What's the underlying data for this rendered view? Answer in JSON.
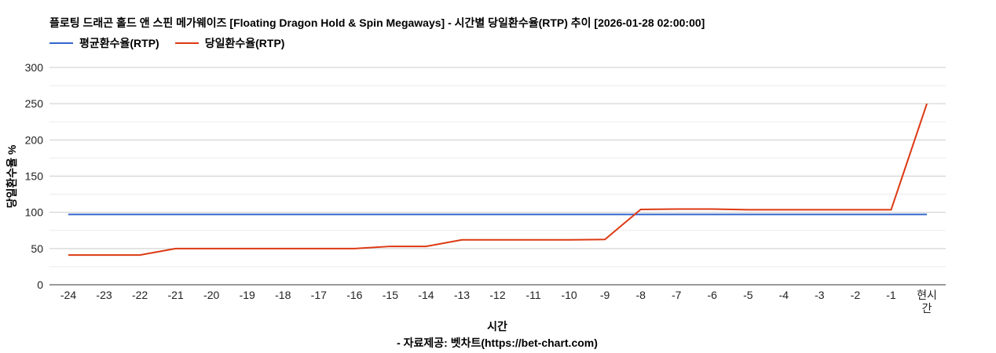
{
  "chart_data": {
    "type": "line",
    "title": "플로팅 드래곤 홀드 앤 스핀 메가웨이즈 [Floating Dragon Hold & Spin Megaways] - 시간별 당일환수율(RTP) 추이 [2026-01-28 02:00:00]",
    "xlabel": "시간",
    "source": "- 자료제공: 벳차트(https://bet-chart.com)",
    "ylabel": "당일환수율 %",
    "ylim": [
      0,
      300
    ],
    "yticks": [
      0,
      50,
      100,
      150,
      200,
      250,
      300
    ],
    "grid": true,
    "legend": "top-left",
    "categories": [
      "-24",
      "-23",
      "-22",
      "-21",
      "-20",
      "-19",
      "-18",
      "-17",
      "-16",
      "-15",
      "-14",
      "-13",
      "-12",
      "-11",
      "-10",
      "-9",
      "-8",
      "-7",
      "-6",
      "-5",
      "-4",
      "-3",
      "-2",
      "-1",
      "현시간"
    ],
    "series": [
      {
        "name": "평균환수율(RTP)",
        "color": "#3366cc",
        "values": [
          97,
          97,
          97,
          97,
          97,
          97,
          97,
          97,
          97,
          97,
          97,
          97,
          97,
          97,
          97,
          97,
          97,
          97,
          97,
          97,
          97,
          97,
          97,
          97,
          97
        ]
      },
      {
        "name": "당일환수율(RTP)",
        "color": "#dc3912",
        "values": [
          41,
          41,
          41,
          50,
          50,
          50,
          50,
          50,
          50,
          53,
          53,
          62,
          62,
          62,
          62,
          62.5,
          104,
          104.5,
          104.5,
          103.5,
          103.5,
          103.5,
          103.5,
          103.5,
          250
        ]
      }
    ]
  }
}
